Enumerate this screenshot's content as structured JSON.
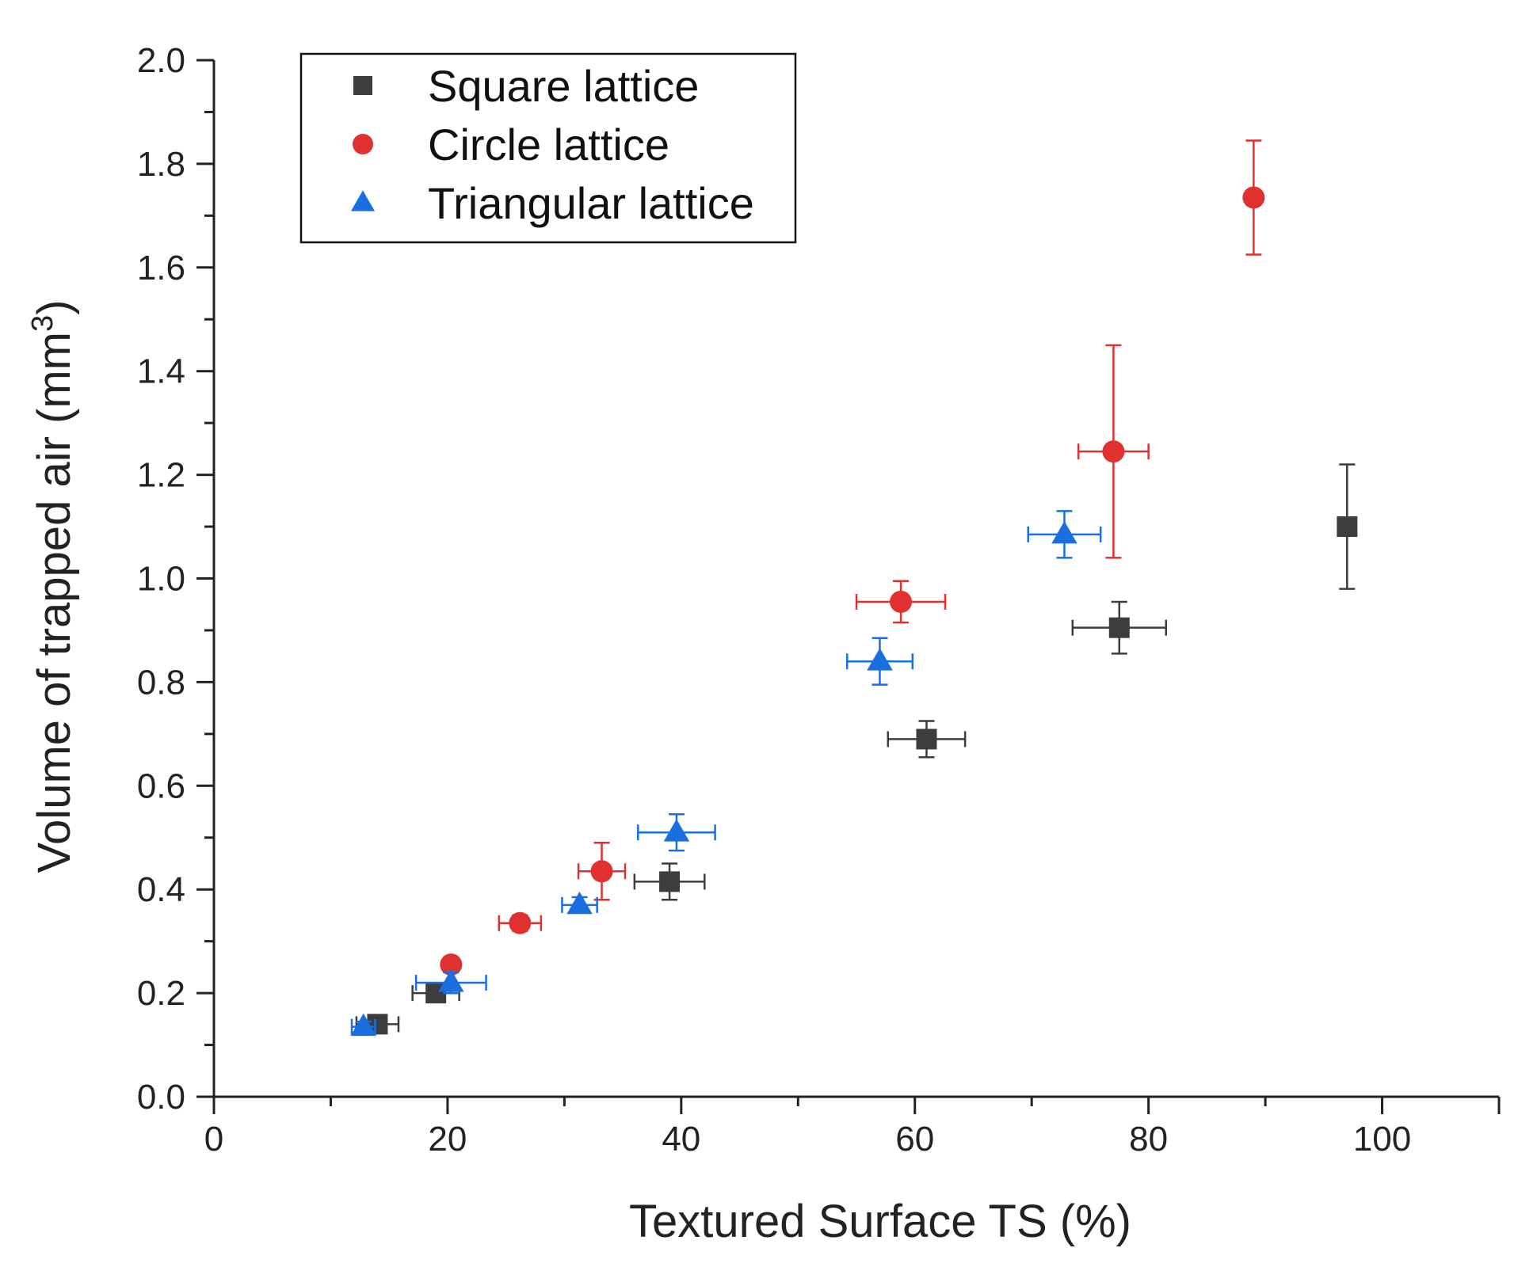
{
  "chart_data": {
    "type": "scatter",
    "title": "",
    "xlabel": "Textured Surface TS (%)",
    "ylabel_main": "Volume of trapped air (mm",
    "ylabel_sup": "3",
    "ylabel_close": ")",
    "xlim": [
      0,
      110
    ],
    "ylim": [
      0,
      2.0
    ],
    "x_ticks": [
      0,
      20,
      40,
      60,
      80,
      100
    ],
    "x_tick_labels": [
      "0",
      "20",
      "40",
      "60",
      "80",
      "100"
    ],
    "y_ticks": [
      0,
      0.2,
      0.4,
      0.6,
      0.8,
      1.0,
      1.2,
      1.4,
      1.6,
      1.8,
      2.0
    ],
    "y_tick_labels": [
      "0.0",
      "0.2",
      "0.4",
      "0.6",
      "0.8",
      "1.0",
      "1.2",
      "1.4",
      "1.6",
      "1.8",
      "2.0"
    ],
    "legend_position": "top-left",
    "series": [
      {
        "name": "Square lattice",
        "marker": "square",
        "color": "#3d3d3d",
        "points": [
          {
            "x": 14.0,
            "y": 0.14,
            "xerr": 1.8,
            "yerr": 0.015
          },
          {
            "x": 19.0,
            "y": 0.2,
            "xerr": 2.0,
            "yerr": 0.015
          },
          {
            "x": 39.0,
            "y": 0.415,
            "xerr": 3.0,
            "yerr": 0.035
          },
          {
            "x": 61.0,
            "y": 0.69,
            "xerr": 3.3,
            "yerr": 0.035
          },
          {
            "x": 77.5,
            "y": 0.905,
            "xerr": 4.0,
            "yerr": 0.05
          },
          {
            "x": 97.0,
            "y": 1.1,
            "xerr": 0,
            "yerr": 0.12
          }
        ]
      },
      {
        "name": "Circle lattice",
        "marker": "circle",
        "color": "#e03030",
        "points": [
          {
            "x": 20.3,
            "y": 0.255,
            "xerr": 0.6,
            "yerr": 0.01
          },
          {
            "x": 26.2,
            "y": 0.335,
            "xerr": 1.8,
            "yerr": 0.015
          },
          {
            "x": 33.2,
            "y": 0.435,
            "xerr": 2.0,
            "yerr": 0.055
          },
          {
            "x": 58.8,
            "y": 0.955,
            "xerr": 3.8,
            "yerr": 0.04
          },
          {
            "x": 77.0,
            "y": 1.245,
            "xerr": 3.0,
            "yerr": 0.205
          },
          {
            "x": 89.0,
            "y": 1.735,
            "xerr": 0,
            "yerr": 0.11
          }
        ]
      },
      {
        "name": "Triangular lattice",
        "marker": "triangle",
        "color": "#1a6fe0",
        "points": [
          {
            "x": 12.8,
            "y": 0.135,
            "xerr": 1.0,
            "yerr": 0.01
          },
          {
            "x": 20.3,
            "y": 0.22,
            "xerr": 3.0,
            "yerr": 0.02
          },
          {
            "x": 31.3,
            "y": 0.37,
            "xerr": 1.5,
            "yerr": 0.015
          },
          {
            "x": 39.6,
            "y": 0.51,
            "xerr": 3.3,
            "yerr": 0.035
          },
          {
            "x": 57.0,
            "y": 0.84,
            "xerr": 2.8,
            "yerr": 0.045
          },
          {
            "x": 72.8,
            "y": 1.085,
            "xerr": 3.1,
            "yerr": 0.045
          }
        ]
      }
    ]
  }
}
